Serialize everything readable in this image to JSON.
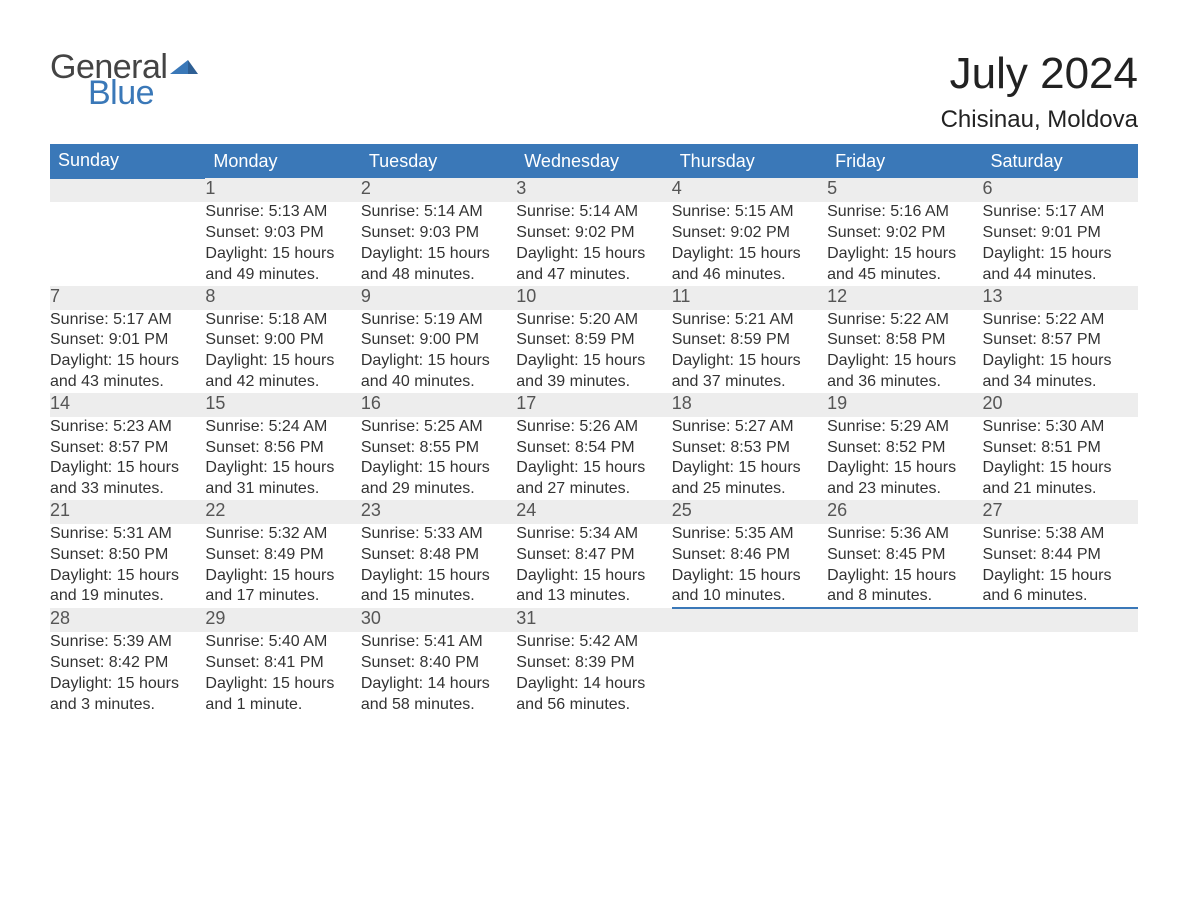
{
  "brand": {
    "logo_general": "General",
    "logo_blue": "Blue",
    "flag_color": "#3a78b8",
    "text_general_color": "#444444",
    "text_blue_color": "#3a78b8"
  },
  "title": {
    "month": "July 2024",
    "location": "Chisinau, Moldova"
  },
  "colors": {
    "header_bg": "#3a78b8",
    "header_text": "#ffffff",
    "daynum_bg": "#ededed",
    "daynum_border": "#3a78b8",
    "body_text": "#333333",
    "page_bg": "#ffffff"
  },
  "weekdays": [
    "Sunday",
    "Monday",
    "Tuesday",
    "Wednesday",
    "Thursday",
    "Friday",
    "Saturday"
  ],
  "weeks": [
    [
      null,
      {
        "n": "1",
        "sunrise": "Sunrise: 5:13 AM",
        "sunset": "Sunset: 9:03 PM",
        "daylight": "Daylight: 15 hours and 49 minutes."
      },
      {
        "n": "2",
        "sunrise": "Sunrise: 5:14 AM",
        "sunset": "Sunset: 9:03 PM",
        "daylight": "Daylight: 15 hours and 48 minutes."
      },
      {
        "n": "3",
        "sunrise": "Sunrise: 5:14 AM",
        "sunset": "Sunset: 9:02 PM",
        "daylight": "Daylight: 15 hours and 47 minutes."
      },
      {
        "n": "4",
        "sunrise": "Sunrise: 5:15 AM",
        "sunset": "Sunset: 9:02 PM",
        "daylight": "Daylight: 15 hours and 46 minutes."
      },
      {
        "n": "5",
        "sunrise": "Sunrise: 5:16 AM",
        "sunset": "Sunset: 9:02 PM",
        "daylight": "Daylight: 15 hours and 45 minutes."
      },
      {
        "n": "6",
        "sunrise": "Sunrise: 5:17 AM",
        "sunset": "Sunset: 9:01 PM",
        "daylight": "Daylight: 15 hours and 44 minutes."
      }
    ],
    [
      {
        "n": "7",
        "sunrise": "Sunrise: 5:17 AM",
        "sunset": "Sunset: 9:01 PM",
        "daylight": "Daylight: 15 hours and 43 minutes."
      },
      {
        "n": "8",
        "sunrise": "Sunrise: 5:18 AM",
        "sunset": "Sunset: 9:00 PM",
        "daylight": "Daylight: 15 hours and 42 minutes."
      },
      {
        "n": "9",
        "sunrise": "Sunrise: 5:19 AM",
        "sunset": "Sunset: 9:00 PM",
        "daylight": "Daylight: 15 hours and 40 minutes."
      },
      {
        "n": "10",
        "sunrise": "Sunrise: 5:20 AM",
        "sunset": "Sunset: 8:59 PM",
        "daylight": "Daylight: 15 hours and 39 minutes."
      },
      {
        "n": "11",
        "sunrise": "Sunrise: 5:21 AM",
        "sunset": "Sunset: 8:59 PM",
        "daylight": "Daylight: 15 hours and 37 minutes."
      },
      {
        "n": "12",
        "sunrise": "Sunrise: 5:22 AM",
        "sunset": "Sunset: 8:58 PM",
        "daylight": "Daylight: 15 hours and 36 minutes."
      },
      {
        "n": "13",
        "sunrise": "Sunrise: 5:22 AM",
        "sunset": "Sunset: 8:57 PM",
        "daylight": "Daylight: 15 hours and 34 minutes."
      }
    ],
    [
      {
        "n": "14",
        "sunrise": "Sunrise: 5:23 AM",
        "sunset": "Sunset: 8:57 PM",
        "daylight": "Daylight: 15 hours and 33 minutes."
      },
      {
        "n": "15",
        "sunrise": "Sunrise: 5:24 AM",
        "sunset": "Sunset: 8:56 PM",
        "daylight": "Daylight: 15 hours and 31 minutes."
      },
      {
        "n": "16",
        "sunrise": "Sunrise: 5:25 AM",
        "sunset": "Sunset: 8:55 PM",
        "daylight": "Daylight: 15 hours and 29 minutes."
      },
      {
        "n": "17",
        "sunrise": "Sunrise: 5:26 AM",
        "sunset": "Sunset: 8:54 PM",
        "daylight": "Daylight: 15 hours and 27 minutes."
      },
      {
        "n": "18",
        "sunrise": "Sunrise: 5:27 AM",
        "sunset": "Sunset: 8:53 PM",
        "daylight": "Daylight: 15 hours and 25 minutes."
      },
      {
        "n": "19",
        "sunrise": "Sunrise: 5:29 AM",
        "sunset": "Sunset: 8:52 PM",
        "daylight": "Daylight: 15 hours and 23 minutes."
      },
      {
        "n": "20",
        "sunrise": "Sunrise: 5:30 AM",
        "sunset": "Sunset: 8:51 PM",
        "daylight": "Daylight: 15 hours and 21 minutes."
      }
    ],
    [
      {
        "n": "21",
        "sunrise": "Sunrise: 5:31 AM",
        "sunset": "Sunset: 8:50 PM",
        "daylight": "Daylight: 15 hours and 19 minutes."
      },
      {
        "n": "22",
        "sunrise": "Sunrise: 5:32 AM",
        "sunset": "Sunset: 8:49 PM",
        "daylight": "Daylight: 15 hours and 17 minutes."
      },
      {
        "n": "23",
        "sunrise": "Sunrise: 5:33 AM",
        "sunset": "Sunset: 8:48 PM",
        "daylight": "Daylight: 15 hours and 15 minutes."
      },
      {
        "n": "24",
        "sunrise": "Sunrise: 5:34 AM",
        "sunset": "Sunset: 8:47 PM",
        "daylight": "Daylight: 15 hours and 13 minutes."
      },
      {
        "n": "25",
        "sunrise": "Sunrise: 5:35 AM",
        "sunset": "Sunset: 8:46 PM",
        "daylight": "Daylight: 15 hours and 10 minutes."
      },
      {
        "n": "26",
        "sunrise": "Sunrise: 5:36 AM",
        "sunset": "Sunset: 8:45 PM",
        "daylight": "Daylight: 15 hours and 8 minutes."
      },
      {
        "n": "27",
        "sunrise": "Sunrise: 5:38 AM",
        "sunset": "Sunset: 8:44 PM",
        "daylight": "Daylight: 15 hours and 6 minutes."
      }
    ],
    [
      {
        "n": "28",
        "sunrise": "Sunrise: 5:39 AM",
        "sunset": "Sunset: 8:42 PM",
        "daylight": "Daylight: 15 hours and 3 minutes."
      },
      {
        "n": "29",
        "sunrise": "Sunrise: 5:40 AM",
        "sunset": "Sunset: 8:41 PM",
        "daylight": "Daylight: 15 hours and 1 minute."
      },
      {
        "n": "30",
        "sunrise": "Sunrise: 5:41 AM",
        "sunset": "Sunset: 8:40 PM",
        "daylight": "Daylight: 14 hours and 58 minutes."
      },
      {
        "n": "31",
        "sunrise": "Sunrise: 5:42 AM",
        "sunset": "Sunset: 8:39 PM",
        "daylight": "Daylight: 14 hours and 56 minutes."
      },
      null,
      null,
      null
    ]
  ]
}
